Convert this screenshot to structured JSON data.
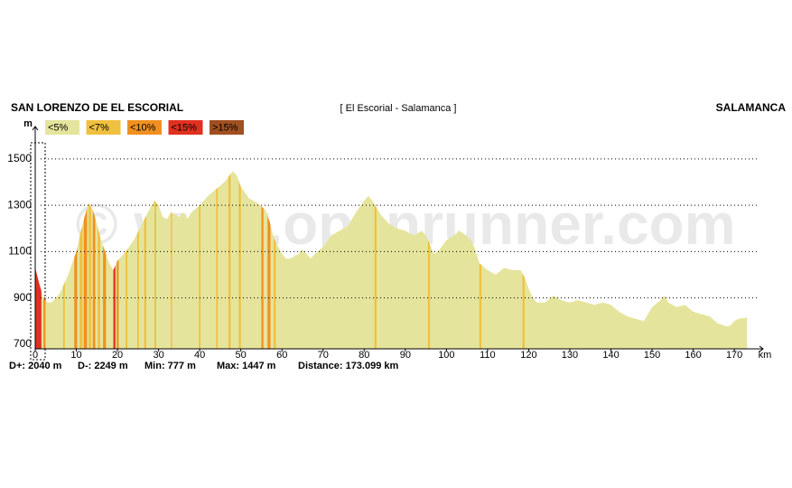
{
  "chart_data": {
    "type": "area",
    "title": "[ El Escorial - Salamanca ]",
    "start_label": "SAN LORENZO DE EL ESCORIAL",
    "end_label": "SALAMANCA",
    "watermark": "© www.openrunner.com",
    "y_label": "m",
    "x_label": "km",
    "stats": [
      "D+: 2040 m",
      "D-: 2249 m",
      "Min: 777 m",
      "Max: 1447 m",
      "Distance: 173.099 km"
    ],
    "color": "#e5e49c",
    "legend": [
      {
        "name": "<5%",
        "color": "#e5e49c"
      },
      {
        "name": "<7%",
        "color": "#f0c040"
      },
      {
        "name": "<10%",
        "color": "#f09020"
      },
      {
        "name": "<15%",
        "color": "#e03020"
      },
      {
        "name": ">15%",
        "color": "#a05020"
      }
    ],
    "x": [
      0,
      1,
      2,
      3,
      4,
      6,
      8,
      10,
      11,
      12,
      13,
      14,
      15,
      16,
      17,
      18,
      19,
      20,
      21,
      22,
      24,
      26,
      28,
      29,
      30,
      31,
      32,
      33,
      34,
      35,
      36,
      37,
      38,
      40,
      42,
      44,
      46,
      48,
      49,
      50,
      52,
      54,
      56,
      57,
      58,
      60,
      61,
      62,
      64,
      65,
      66,
      67,
      68,
      70,
      72,
      74,
      76,
      78,
      80,
      81,
      82,
      84,
      86,
      88,
      90,
      92,
      94,
      95,
      96,
      97,
      98,
      100,
      102,
      103,
      104,
      106,
      107,
      108,
      110,
      112,
      114,
      116,
      118,
      119,
      120,
      121,
      122,
      124,
      126,
      128,
      130,
      132,
      134,
      136,
      138,
      140,
      142,
      144,
      146,
      148,
      150,
      152,
      153,
      154,
      156,
      158,
      160,
      162,
      164,
      166,
      168,
      169,
      170,
      171,
      173.1
    ],
    "values": [
      1030,
      960,
      900,
      880,
      880,
      920,
      1000,
      1100,
      1180,
      1250,
      1310,
      1280,
      1220,
      1150,
      1100,
      1050,
      1020,
      1060,
      1080,
      1100,
      1150,
      1220,
      1290,
      1320,
      1300,
      1250,
      1240,
      1270,
      1260,
      1250,
      1270,
      1240,
      1270,
      1300,
      1340,
      1370,
      1400,
      1447,
      1430,
      1380,
      1330,
      1310,
      1280,
      1230,
      1160,
      1090,
      1070,
      1070,
      1090,
      1110,
      1090,
      1070,
      1090,
      1120,
      1170,
      1190,
      1210,
      1270,
      1320,
      1340,
      1320,
      1260,
      1220,
      1200,
      1190,
      1170,
      1190,
      1170,
      1130,
      1090,
      1100,
      1150,
      1170,
      1190,
      1180,
      1150,
      1110,
      1050,
      1020,
      1000,
      1030,
      1020,
      1020,
      990,
      940,
      900,
      880,
      880,
      910,
      890,
      880,
      890,
      880,
      870,
      880,
      870,
      840,
      820,
      810,
      800,
      860,
      890,
      910,
      880,
      860,
      870,
      840,
      830,
      820,
      790,
      777,
      780,
      800,
      810,
      815
    ],
    "gradient_segments": [
      {
        "from": 0,
        "to": 1.5,
        "level": 3
      },
      {
        "from": 2,
        "to": 2.5,
        "level": 2
      },
      {
        "from": 6.8,
        "to": 7.2,
        "level": 1
      },
      {
        "from": 9.5,
        "to": 10.2,
        "level": 2
      },
      {
        "from": 10.8,
        "to": 11.5,
        "level": 1
      },
      {
        "from": 11.8,
        "to": 12.6,
        "level": 2
      },
      {
        "from": 13,
        "to": 13.6,
        "level": 1
      },
      {
        "from": 14,
        "to": 14.6,
        "level": 2
      },
      {
        "from": 15.2,
        "to": 15.8,
        "level": 1
      },
      {
        "from": 16.5,
        "to": 17.2,
        "level": 2
      },
      {
        "from": 19,
        "to": 19.5,
        "level": 3
      },
      {
        "from": 19.8,
        "to": 20.3,
        "level": 2
      },
      {
        "from": 22,
        "to": 22.4,
        "level": 1
      },
      {
        "from": 24.8,
        "to": 25.2,
        "level": 1
      },
      {
        "from": 26.5,
        "to": 27,
        "level": 1
      },
      {
        "from": 29,
        "to": 29.4,
        "level": 1
      },
      {
        "from": 33,
        "to": 33.3,
        "level": 1
      },
      {
        "from": 39.8,
        "to": 40.2,
        "level": 1
      },
      {
        "from": 44,
        "to": 44.4,
        "level": 1
      },
      {
        "from": 47,
        "to": 47.5,
        "level": 1
      },
      {
        "from": 49.5,
        "to": 50,
        "level": 1
      },
      {
        "from": 55,
        "to": 55.5,
        "level": 2
      },
      {
        "from": 56.5,
        "to": 57.2,
        "level": 2
      },
      {
        "from": 58,
        "to": 58.5,
        "level": 1
      },
      {
        "from": 82.5,
        "to": 83,
        "level": 1
      },
      {
        "from": 95.5,
        "to": 96,
        "level": 1
      },
      {
        "from": 108,
        "to": 108.5,
        "level": 1
      },
      {
        "from": 118.5,
        "to": 119,
        "level": 1
      }
    ],
    "xlim": [
      0,
      177
    ],
    "ylim": [
      680,
      1640
    ],
    "xticks": [
      0,
      10,
      20,
      30,
      40,
      50,
      60,
      70,
      80,
      90,
      100,
      110,
      120,
      130,
      140,
      150,
      160,
      170
    ],
    "yticks": [
      700,
      900,
      1100,
      1300,
      1500
    ],
    "grid": true
  }
}
